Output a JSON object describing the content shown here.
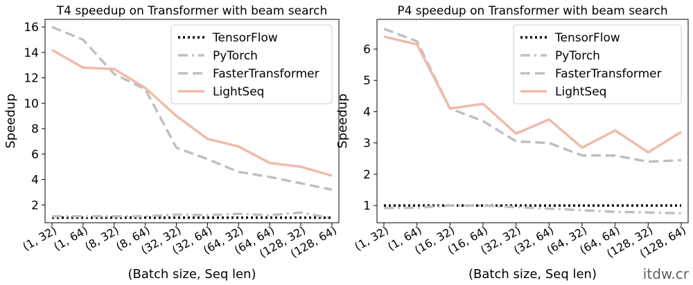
{
  "chart_data": [
    {
      "type": "line",
      "title": "T4 speedup on Transformer with beam search",
      "xlabel": "(Batch size, Seq len)",
      "ylabel": "Speedup",
      "categories": [
        "(1, 32)",
        "(1, 64)",
        "(8, 32)",
        "(8, 64)",
        "(32, 32)",
        "(32, 64)",
        "(64, 32)",
        "(64, 64)",
        "(128, 32)",
        "(128, 64)"
      ],
      "yticks": [
        "2",
        "4",
        "6",
        "8",
        "10",
        "12",
        "14",
        "16"
      ],
      "ylim": [
        0.6,
        16.6
      ],
      "grid": false,
      "legend_position": "top-right",
      "series": [
        {
          "name": "TensorFlow",
          "values": [
            1,
            1,
            1,
            1,
            1,
            1,
            1,
            1,
            1,
            1
          ],
          "color": "#000000",
          "style": "dotted"
        },
        {
          "name": "PyTorch",
          "values": [
            1.1,
            1.1,
            1.1,
            1.1,
            1.25,
            1.2,
            1.3,
            1.2,
            1.4,
            0.95
          ],
          "color": "#bfbfbf",
          "style": "dashdot"
        },
        {
          "name": "FasterTransformer",
          "values": [
            16.0,
            15.0,
            12.3,
            11.1,
            6.5,
            5.6,
            4.6,
            4.2,
            3.7,
            3.2
          ],
          "color": "#bfbfbf",
          "style": "dashed"
        },
        {
          "name": "LightSeq",
          "values": [
            14.2,
            12.8,
            12.7,
            11.2,
            9.0,
            7.2,
            6.6,
            5.3,
            5.0,
            4.3
          ],
          "color": "#f0baa8",
          "style": "solid"
        }
      ]
    },
    {
      "type": "line",
      "title": "P4 speedup on Transformer with beam search",
      "xlabel": "(Batch size, Seq len)",
      "ylabel": "Speedup",
      "categories": [
        "(1, 32)",
        "(1, 64)",
        "(16, 32)",
        "(16, 64)",
        "(32, 32)",
        "(32, 64)",
        "(64, 32)",
        "(64, 64)",
        "(128, 32)",
        "(128, 64)"
      ],
      "yticks": [
        "1",
        "2",
        "3",
        "4",
        "5",
        "6"
      ],
      "ylim": [
        0.45,
        6.95
      ],
      "grid": false,
      "legend_position": "top-right",
      "series": [
        {
          "name": "TensorFlow",
          "values": [
            1,
            1,
            1,
            1,
            1,
            1,
            1,
            1,
            1,
            1
          ],
          "color": "#000000",
          "style": "dotted"
        },
        {
          "name": "PyTorch",
          "values": [
            0.92,
            0.93,
            1.0,
            1.0,
            0.95,
            0.9,
            0.85,
            0.8,
            0.78,
            0.75
          ],
          "color": "#bfbfbf",
          "style": "dashdot"
        },
        {
          "name": "FasterTransformer",
          "values": [
            6.65,
            6.25,
            4.1,
            3.7,
            3.05,
            3.0,
            2.6,
            2.6,
            2.4,
            2.45
          ],
          "color": "#bfbfbf",
          "style": "dashed"
        },
        {
          "name": "LightSeq",
          "values": [
            6.4,
            6.15,
            4.1,
            4.25,
            3.3,
            3.75,
            2.85,
            3.4,
            2.7,
            3.35
          ],
          "color": "#f0baa8",
          "style": "solid"
        }
      ]
    }
  ],
  "watermark": "itdw.cr"
}
